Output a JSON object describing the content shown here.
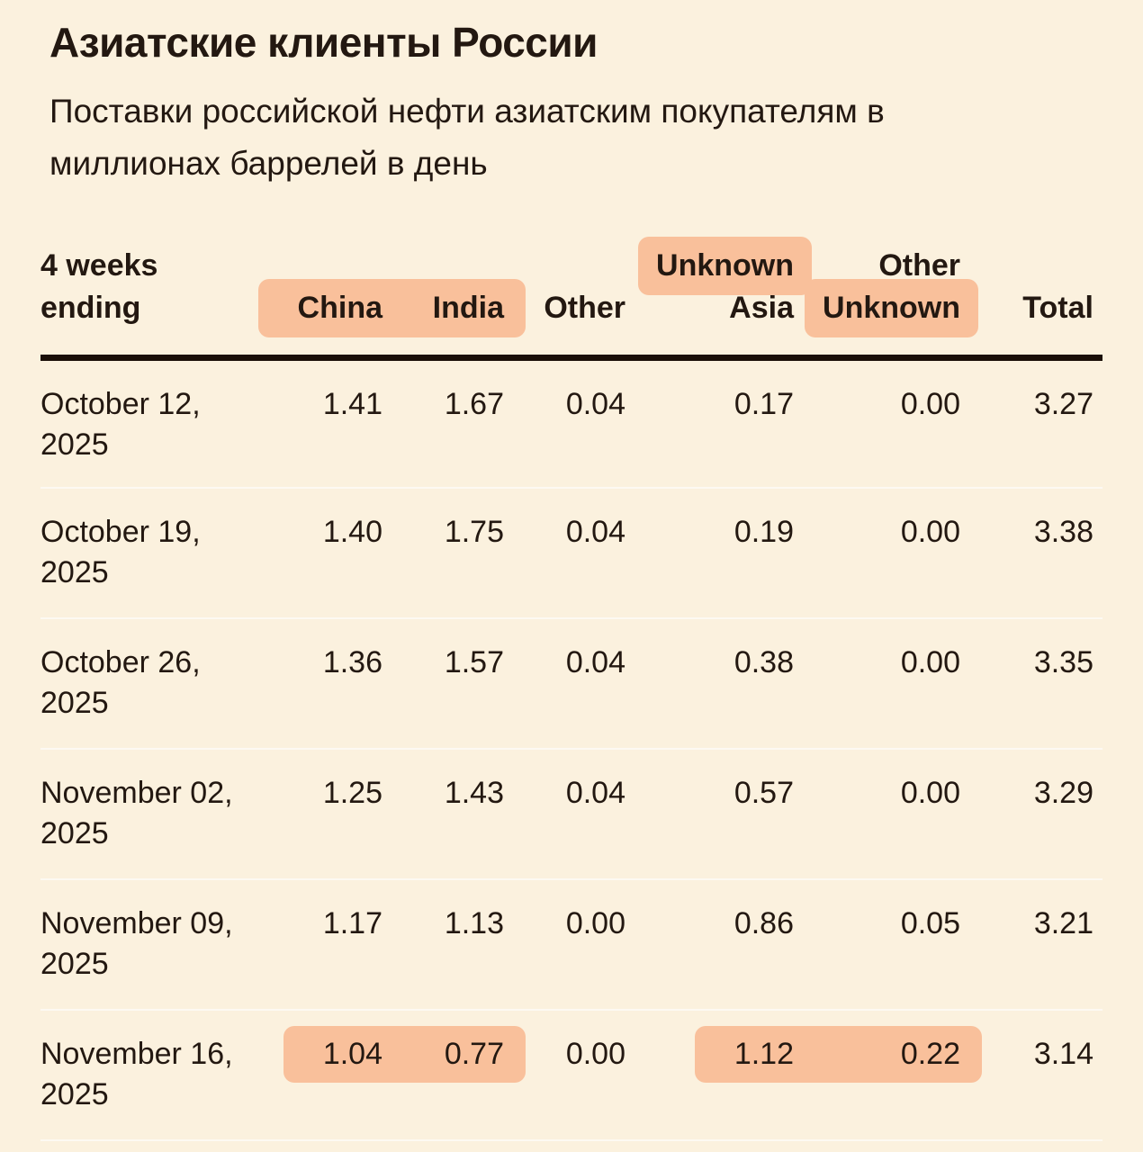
{
  "title": "Азиатские клиенты России",
  "subtitle": "Поставки российской нефти азиатским покупателям в миллионах баррелей в день",
  "colors": {
    "background": "#FBF1DE",
    "highlight": "#F9C09B",
    "text": "#231811",
    "rule": "#1A0F08",
    "row_separator": "rgba(255,255,255,0.6)"
  },
  "table": {
    "headers": {
      "period_l1": "4 weeks",
      "period_l2": "ending",
      "china": "China",
      "india": "India",
      "other": "Other",
      "unknown_asia_l1": "Unknown",
      "unknown_asia_l2": "Asia",
      "other_unknown_l1": "Other",
      "other_unknown_l2": "Unknown",
      "total": "Total"
    },
    "rows": [
      {
        "date_l1": "October 12,",
        "date_l2": "2025",
        "china": "1.41",
        "india": "1.67",
        "other": "0.04",
        "unknown_asia": "0.17",
        "other_unknown": "0.00",
        "total": "3.27",
        "highlighted": false
      },
      {
        "date_l1": "October 19,",
        "date_l2": "2025",
        "china": "1.40",
        "india": "1.75",
        "other": "0.04",
        "unknown_asia": "0.19",
        "other_unknown": "0.00",
        "total": "3.38",
        "highlighted": false
      },
      {
        "date_l1": "October 26,",
        "date_l2": "2025",
        "china": "1.36",
        "india": "1.57",
        "other": "0.04",
        "unknown_asia": "0.38",
        "other_unknown": "0.00",
        "total": "3.35",
        "highlighted": false
      },
      {
        "date_l1": "November 02,",
        "date_l2": "2025",
        "china": "1.25",
        "india": "1.43",
        "other": "0.04",
        "unknown_asia": "0.57",
        "other_unknown": "0.00",
        "total": "3.29",
        "highlighted": false
      },
      {
        "date_l1": "November 09,",
        "date_l2": "2025",
        "china": "1.17",
        "india": "1.13",
        "other": "0.00",
        "unknown_asia": "0.86",
        "other_unknown": "0.05",
        "total": "3.21",
        "highlighted": false
      },
      {
        "date_l1": "November 16,",
        "date_l2": "2025",
        "china": "1.04",
        "india": "0.77",
        "other": "0.00",
        "unknown_asia": "1.12",
        "other_unknown": "0.22",
        "total": "3.14",
        "highlighted": true
      }
    ]
  },
  "chart_data": {
    "type": "table",
    "title": "Азиатские клиенты России",
    "subtitle": "Поставки российской нефти азиатским покупателям в миллионах баррелей в день",
    "columns": [
      "4 weeks ending",
      "China",
      "India",
      "Other",
      "Unknown Asia",
      "Other Unknown",
      "Total"
    ],
    "rows": [
      [
        "October 12, 2025",
        1.41,
        1.67,
        0.04,
        0.17,
        0.0,
        3.27
      ],
      [
        "October 19, 2025",
        1.4,
        1.75,
        0.04,
        0.19,
        0.0,
        3.38
      ],
      [
        "October 26, 2025",
        1.36,
        1.57,
        0.04,
        0.38,
        0.0,
        3.35
      ],
      [
        "November 02, 2025",
        1.25,
        1.43,
        0.04,
        0.57,
        0.0,
        3.29
      ],
      [
        "November 09, 2025",
        1.17,
        1.13,
        0.0,
        0.86,
        0.05,
        3.21
      ],
      [
        "November 16, 2025",
        1.04,
        0.77,
        0.0,
        1.12,
        0.22,
        3.14
      ]
    ],
    "highlighted_header_cells": [
      "China",
      "India",
      "Unknown",
      "Unknown"
    ],
    "highlighted_row": "November 16, 2025",
    "highlighted_row_values": {
      "China": 1.04,
      "India": 0.77,
      "Unknown Asia": 1.12,
      "Other Unknown": 0.22
    }
  }
}
